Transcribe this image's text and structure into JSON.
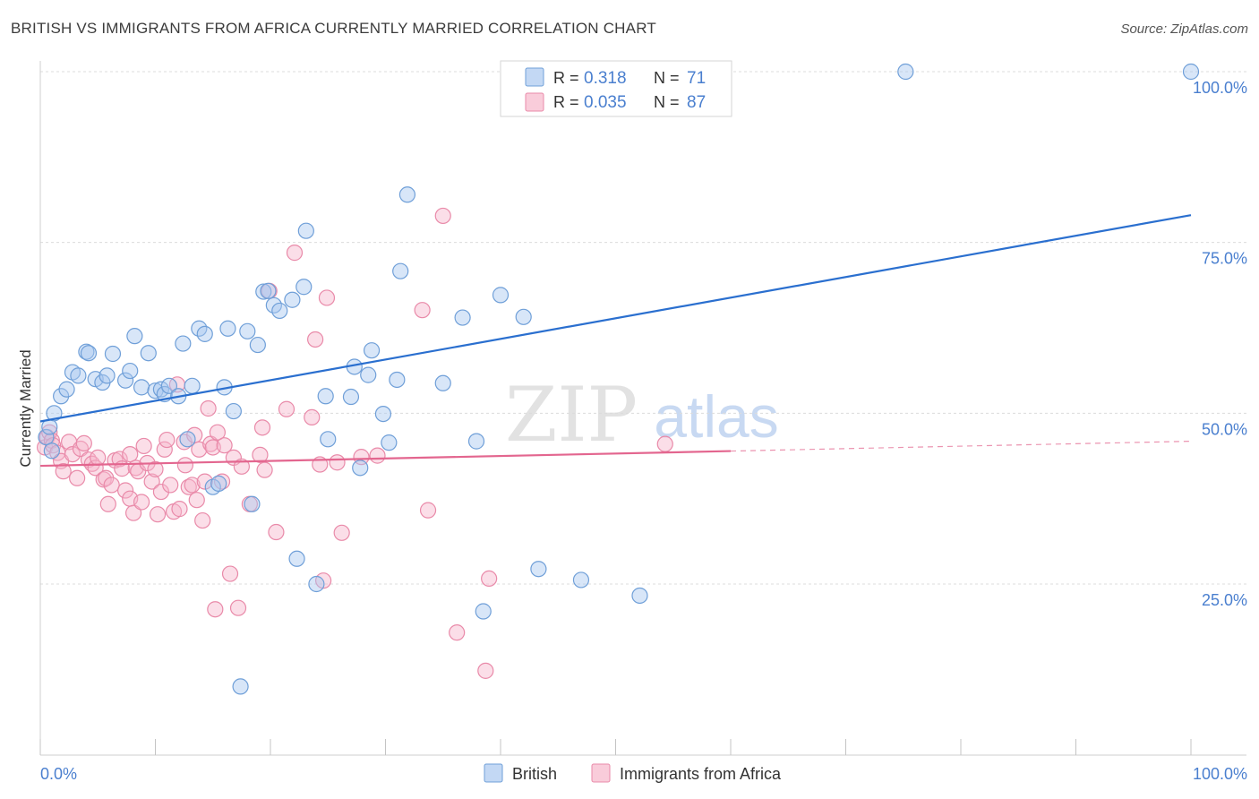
{
  "title": "BRITISH VS IMMIGRANTS FROM AFRICA CURRENTLY MARRIED CORRELATION CHART",
  "source": "Source: ZipAtlas.com",
  "watermark": {
    "zip": "ZIP",
    "atlas": "atlas"
  },
  "colors": {
    "british_fill": "#a9c8f0",
    "british_stroke": "#6f9fd8",
    "british_line": "#2a6fcf",
    "africa_fill": "#f6b6cb",
    "africa_stroke": "#e98aa9",
    "africa_line": "#e3668f",
    "axis_text": "#4a7fcf",
    "grid": "#dcdcdc"
  },
  "legend_top": [
    {
      "r_label": "R =",
      "r_value": "0.318",
      "n_label": "N =",
      "n_value": "71"
    },
    {
      "r_label": "R =",
      "r_value": "0.035",
      "n_label": "N =",
      "n_value": "87"
    }
  ],
  "legend_bottom": [
    "British",
    "Immigrants from Africa"
  ],
  "chart_data": {
    "type": "scatter",
    "title": "BRITISH VS IMMIGRANTS FROM AFRICA CURRENTLY MARRIED CORRELATION CHART",
    "xlabel": "",
    "ylabel": "Currently Married",
    "xlim": [
      0,
      100
    ],
    "ylim": [
      0,
      105
    ],
    "x_tick_labels": [
      "0.0%",
      "100.0%"
    ],
    "y_tick_labels": [
      "25.0%",
      "50.0%",
      "75.0%",
      "100.0%"
    ],
    "y_ticks": [
      25,
      50,
      75,
      100
    ],
    "grid": true,
    "legend_position": "top-center",
    "series": [
      {
        "name": "British",
        "r": 0.318,
        "n": 71,
        "trend": {
          "x": [
            0,
            100
          ],
          "y": [
            48.8,
            79.0
          ],
          "dashed_from": null
        },
        "points": [
          [
            0.5,
            46.5
          ],
          [
            0.8,
            48.0
          ],
          [
            1.0,
            44.5
          ],
          [
            1.2,
            50.0
          ],
          [
            1.8,
            52.5
          ],
          [
            2.3,
            53.5
          ],
          [
            2.8,
            56.0
          ],
          [
            3.3,
            55.5
          ],
          [
            4.0,
            59.0
          ],
          [
            4.2,
            58.8
          ],
          [
            4.8,
            55.0
          ],
          [
            5.4,
            54.5
          ],
          [
            5.8,
            55.5
          ],
          [
            6.3,
            58.7
          ],
          [
            7.4,
            54.8
          ],
          [
            7.8,
            56.2
          ],
          [
            8.2,
            61.3
          ],
          [
            8.8,
            53.8
          ],
          [
            9.4,
            58.8
          ],
          [
            10.0,
            53.3
          ],
          [
            10.5,
            53.5
          ],
          [
            10.8,
            52.8
          ],
          [
            11.2,
            54.0
          ],
          [
            12.0,
            52.5
          ],
          [
            12.4,
            60.2
          ],
          [
            12.8,
            46.2
          ],
          [
            13.2,
            54.0
          ],
          [
            13.8,
            62.4
          ],
          [
            14.3,
            61.6
          ],
          [
            15.0,
            39.2
          ],
          [
            15.5,
            39.7
          ],
          [
            16.0,
            53.8
          ],
          [
            16.3,
            62.4
          ],
          [
            16.8,
            50.3
          ],
          [
            17.4,
            10.0
          ],
          [
            18.0,
            62.0
          ],
          [
            18.4,
            36.7
          ],
          [
            18.9,
            60.0
          ],
          [
            19.4,
            67.8
          ],
          [
            19.8,
            67.9
          ],
          [
            20.3,
            65.8
          ],
          [
            20.8,
            65.0
          ],
          [
            21.9,
            66.6
          ],
          [
            22.3,
            28.7
          ],
          [
            22.9,
            68.5
          ],
          [
            23.1,
            76.7
          ],
          [
            24.0,
            25.0
          ],
          [
            24.8,
            52.5
          ],
          [
            25.0,
            46.2
          ],
          [
            27.0,
            52.4
          ],
          [
            27.3,
            56.8
          ],
          [
            27.8,
            42.0
          ],
          [
            28.5,
            55.6
          ],
          [
            28.8,
            59.2
          ],
          [
            29.8,
            49.9
          ],
          [
            30.3,
            45.7
          ],
          [
            31.0,
            54.9
          ],
          [
            31.9,
            82.0
          ],
          [
            31.3,
            70.8
          ],
          [
            35.0,
            54.4
          ],
          [
            36.7,
            64.0
          ],
          [
            37.9,
            45.9
          ],
          [
            38.5,
            21.0
          ],
          [
            40.0,
            67.3
          ],
          [
            42.0,
            64.1
          ],
          [
            43.3,
            27.2
          ],
          [
            47.0,
            25.6
          ],
          [
            52.1,
            23.3
          ],
          [
            75.2,
            100.0
          ],
          [
            100.0,
            100.0
          ],
          [
            49.0,
            100.0
          ]
        ]
      },
      {
        "name": "Immigrants from Africa",
        "r": 0.035,
        "n": 87,
        "trend": {
          "x": [
            0,
            100
          ],
          "y": [
            42.3,
            45.9
          ],
          "dashed_from": 60
        },
        "points": [
          [
            0.4,
            45.0
          ],
          [
            0.6,
            46.5
          ],
          [
            0.8,
            47.2
          ],
          [
            1.0,
            46.0
          ],
          [
            1.1,
            45.3
          ],
          [
            1.5,
            44.2
          ],
          [
            1.8,
            43.0
          ],
          [
            2.0,
            41.5
          ],
          [
            2.5,
            45.8
          ],
          [
            2.8,
            44.0
          ],
          [
            3.2,
            40.5
          ],
          [
            3.5,
            44.8
          ],
          [
            3.8,
            45.6
          ],
          [
            4.2,
            43.2
          ],
          [
            4.5,
            42.6
          ],
          [
            4.8,
            42.0
          ],
          [
            5.0,
            43.5
          ],
          [
            5.5,
            40.3
          ],
          [
            5.7,
            40.5
          ],
          [
            5.9,
            36.7
          ],
          [
            6.2,
            39.5
          ],
          [
            6.5,
            43.1
          ],
          [
            6.9,
            43.3
          ],
          [
            7.1,
            41.9
          ],
          [
            7.4,
            38.7
          ],
          [
            7.8,
            44.0
          ],
          [
            7.8,
            37.5
          ],
          [
            8.1,
            35.4
          ],
          [
            8.3,
            42.0
          ],
          [
            8.5,
            41.5
          ],
          [
            8.8,
            37.0
          ],
          [
            9.0,
            45.2
          ],
          [
            9.3,
            42.7
          ],
          [
            9.7,
            40.0
          ],
          [
            10.0,
            41.8
          ],
          [
            10.2,
            35.2
          ],
          [
            10.5,
            38.5
          ],
          [
            10.8,
            44.7
          ],
          [
            11.0,
            46.1
          ],
          [
            11.3,
            39.5
          ],
          [
            11.6,
            35.6
          ],
          [
            11.9,
            54.2
          ],
          [
            12.1,
            36.0
          ],
          [
            12.5,
            45.8
          ],
          [
            12.6,
            42.4
          ],
          [
            12.9,
            39.2
          ],
          [
            13.2,
            39.5
          ],
          [
            13.4,
            46.8
          ],
          [
            13.6,
            37.3
          ],
          [
            13.8,
            44.7
          ],
          [
            14.1,
            34.3
          ],
          [
            14.3,
            40.0
          ],
          [
            14.6,
            50.7
          ],
          [
            14.8,
            45.5
          ],
          [
            15.0,
            45.0
          ],
          [
            15.2,
            21.3
          ],
          [
            15.4,
            47.2
          ],
          [
            15.8,
            40.0
          ],
          [
            16.0,
            45.3
          ],
          [
            16.5,
            26.5
          ],
          [
            16.8,
            43.5
          ],
          [
            17.2,
            21.5
          ],
          [
            17.5,
            42.2
          ],
          [
            18.2,
            36.7
          ],
          [
            19.1,
            43.9
          ],
          [
            19.3,
            47.9
          ],
          [
            19.5,
            41.7
          ],
          [
            19.9,
            67.9
          ],
          [
            20.5,
            32.6
          ],
          [
            21.4,
            50.6
          ],
          [
            22.1,
            73.5
          ],
          [
            23.6,
            49.4
          ],
          [
            23.9,
            60.8
          ],
          [
            24.3,
            42.5
          ],
          [
            24.6,
            25.5
          ],
          [
            24.9,
            66.9
          ],
          [
            25.8,
            42.8
          ],
          [
            26.2,
            32.5
          ],
          [
            27.9,
            43.6
          ],
          [
            29.3,
            43.8
          ],
          [
            33.2,
            65.1
          ],
          [
            33.7,
            35.8
          ],
          [
            35.0,
            78.9
          ],
          [
            36.2,
            17.9
          ],
          [
            38.7,
            12.3
          ],
          [
            39.0,
            25.8
          ],
          [
            54.3,
            45.5
          ]
        ]
      }
    ]
  }
}
